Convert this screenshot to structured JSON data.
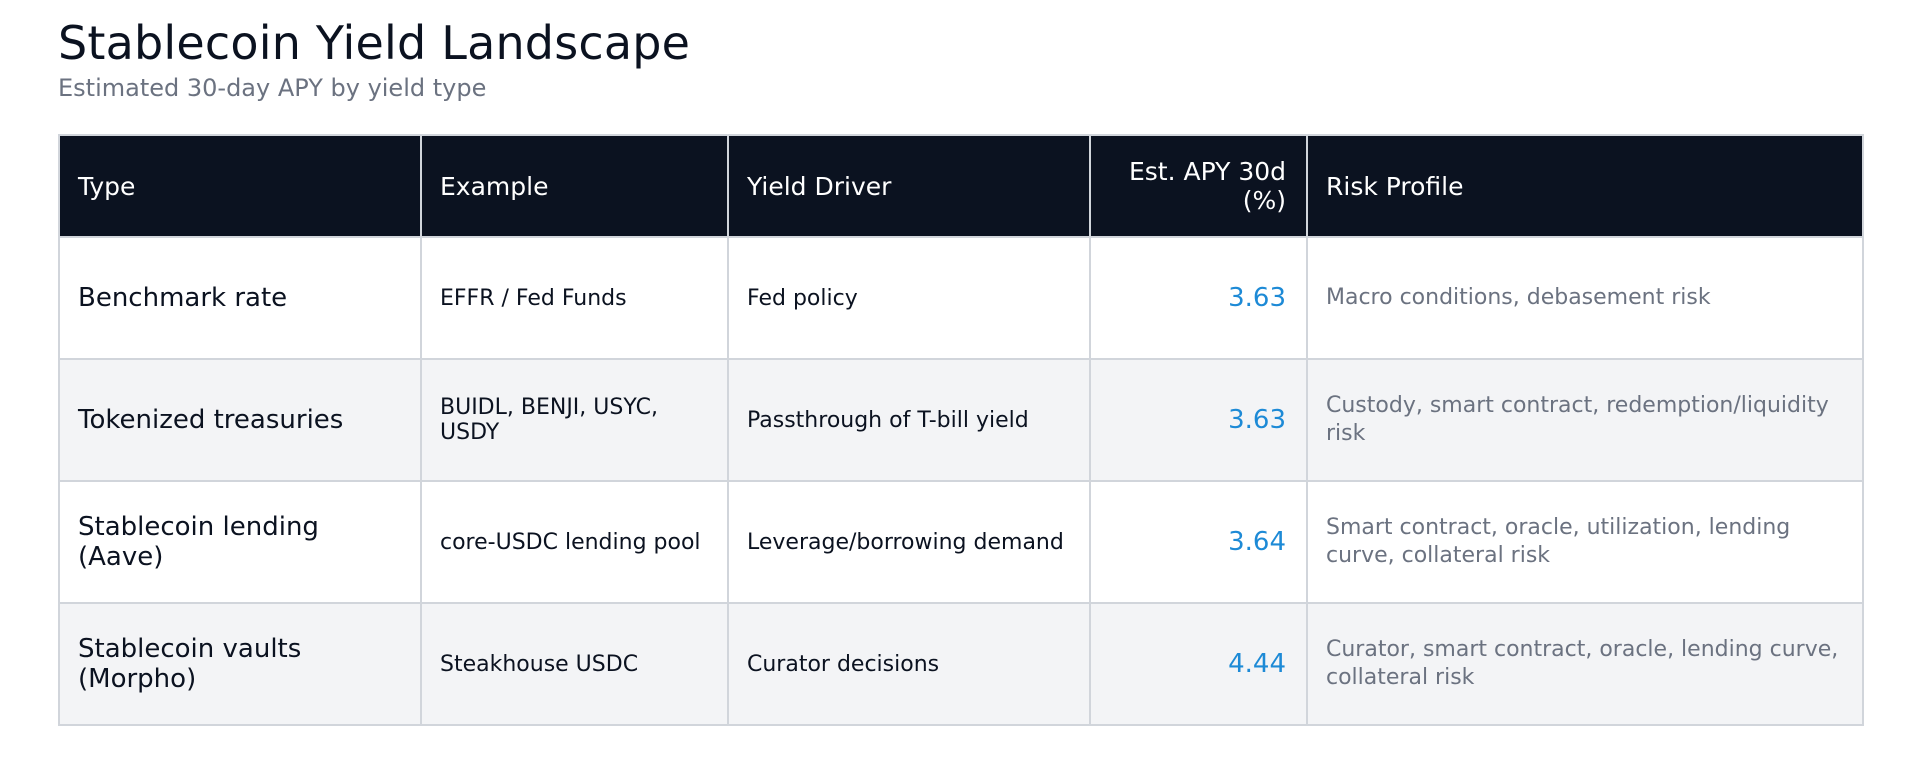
{
  "header": {
    "title": "Stablecoin Yield Landscape",
    "subtitle": "Estimated 30-day APY by yield type"
  },
  "chart_data": {
    "type": "table",
    "title": "Stablecoin Yield Landscape",
    "subtitle": "Estimated 30-day APY by yield type",
    "columns": [
      "Type",
      "Example",
      "Yield Driver",
      "Est. APY 30d (%)",
      "Risk Profile"
    ],
    "rows": [
      {
        "type": "Benchmark rate",
        "example": "EFFR / Fed Funds",
        "driver": "Fed policy",
        "apy": "3.63",
        "risk": "Macro conditions, debasement risk"
      },
      {
        "type": "Tokenized treasuries",
        "example": "BUIDL, BENJI, USYC, USDY",
        "driver": "Passthrough of T-bill yield",
        "apy": "3.63",
        "risk": "Custody, smart contract, redemption/liquidity risk"
      },
      {
        "type": "Stablecoin lending (Aave)",
        "example": "core-USDC lending pool",
        "driver": "Leverage/borrowing demand",
        "apy": "3.64",
        "risk": "Smart contract, oracle, utilization, lending curve, collateral risk"
      },
      {
        "type": "Stablecoin vaults (Morpho)",
        "example": "Steakhouse USDC",
        "driver": "Curator decisions",
        "apy": "4.44",
        "risk": "Curator, smart contract, oracle, lending curve, collateral risk"
      }
    ]
  },
  "colors": {
    "header_bg": "#0b1220",
    "apy_text": "#1d8ad6",
    "risk_text": "#6b7280",
    "alt_row_bg": "#f3f4f6",
    "grid": "#d1d5db"
  }
}
